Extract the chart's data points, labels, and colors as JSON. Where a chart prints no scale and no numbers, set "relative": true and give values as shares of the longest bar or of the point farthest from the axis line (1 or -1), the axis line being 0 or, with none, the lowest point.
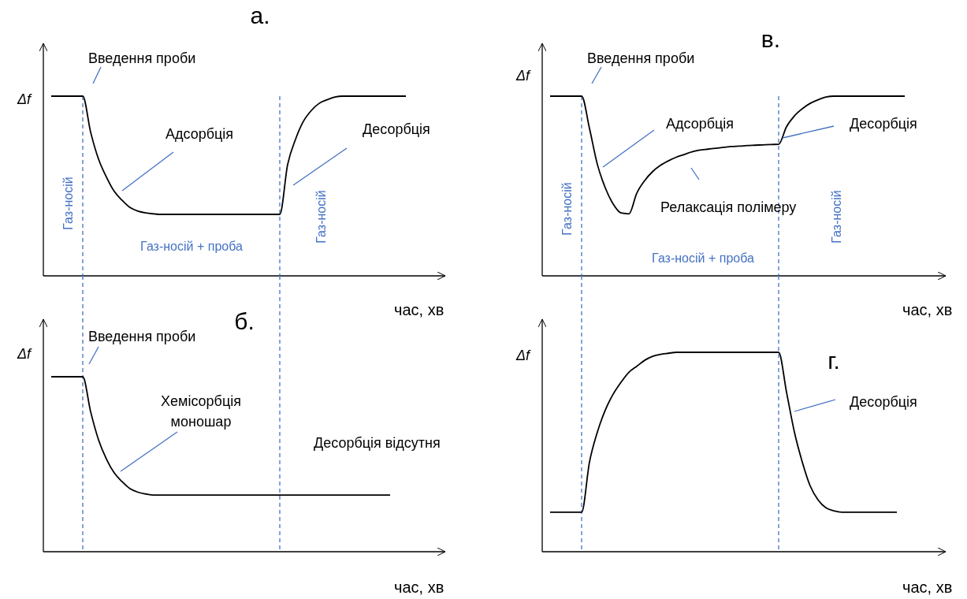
{
  "chart_data": [
    {
      "type": "line",
      "title": "а.",
      "xlabel": "час, хв",
      "ylabel": "Δf",
      "relative": true,
      "marker": "none",
      "line_style": "solid",
      "categories": [
        null,
        null,
        null,
        null,
        null,
        null,
        null,
        null,
        null,
        null,
        null,
        null,
        null,
        null,
        null,
        null,
        null,
        null,
        null,
        null,
        null,
        null,
        null,
        null,
        null,
        null,
        null,
        null,
        null,
        null,
        null,
        null,
        null,
        null,
        null,
        null,
        null,
        null,
        null,
        null,
        null,
        null,
        null,
        null,
        null,
        null,
        null,
        null,
        null,
        null,
        null
      ],
      "series": [
        {
          "color": "#000000",
          "values": [
            null,
            1,
            1,
            1,
            1,
            1,
            0.8,
            0.65,
            0.55,
            0.47,
            0.42,
            0.38,
            0.36,
            0.35,
            0.345,
            0.342,
            0.342,
            0.342,
            0.342,
            0.342,
            0.342,
            0.342,
            0.342,
            0.342,
            0.342,
            0.342,
            0.342,
            0.342,
            0.342,
            0.342,
            0.342,
            0.62,
            0.76,
            0.86,
            0.92,
            0.96,
            0.98,
            0.995,
            1,
            1,
            1,
            1,
            1,
            1,
            1,
            1,
            1,
            null,
            null,
            null,
            null
          ]
        }
      ],
      "annotations": [
        "Введення проби",
        "Адсорбція",
        "Десорбція",
        "Газ-носій",
        "Газ-носій + проба",
        "Газ-носій"
      ]
    },
    {
      "type": "line",
      "title": "б.",
      "xlabel": "час, хв",
      "ylabel": "Δf",
      "relative": true,
      "marker": "none",
      "line_style": "solid",
      "categories": [
        null,
        null,
        null,
        null,
        null,
        null,
        null,
        null,
        null,
        null,
        null,
        null,
        null,
        null,
        null,
        null,
        null,
        null,
        null,
        null,
        null,
        null,
        null,
        null,
        null,
        null,
        null,
        null,
        null,
        null,
        null,
        null,
        null,
        null,
        null,
        null,
        null,
        null,
        null,
        null,
        null,
        null,
        null,
        null,
        null,
        null,
        null,
        null,
        null,
        null,
        null
      ],
      "series": [
        {
          "color": "#000000",
          "values": [
            null,
            1,
            1,
            1,
            1,
            1,
            0.8,
            0.64,
            0.53,
            0.45,
            0.4,
            0.36,
            0.34,
            0.33,
            0.324,
            0.324,
            0.324,
            0.324,
            0.324,
            0.324,
            0.324,
            0.324,
            0.324,
            0.324,
            0.324,
            0.324,
            0.324,
            0.324,
            0.324,
            0.324,
            0.324,
            0.324,
            0.324,
            0.324,
            0.324,
            0.324,
            0.324,
            0.324,
            0.324,
            0.324,
            0.324,
            0.324,
            0.324,
            0.324,
            0.324,
            null,
            null,
            null,
            null,
            null,
            null
          ]
        }
      ],
      "annotations": [
        "Введення проби",
        "Хемісорбція моношар",
        "Десорбція  відсутня"
      ]
    },
    {
      "type": "line",
      "title": "в.",
      "xlabel": "час, хв",
      "ylabel": "Δf",
      "relative": true,
      "marker": "none",
      "line_style": "solid",
      "categories": [
        null,
        null,
        null,
        null,
        null,
        null,
        null,
        null,
        null,
        null,
        null,
        null,
        null,
        null,
        null,
        null,
        null,
        null,
        null,
        null,
        null,
        null,
        null,
        null,
        null,
        null,
        null,
        null,
        null,
        null,
        null,
        null,
        null,
        null,
        null,
        null,
        null,
        null,
        null,
        null,
        null,
        null,
        null,
        null,
        null,
        null,
        null,
        null,
        null,
        null,
        null
      ],
      "series": [
        {
          "color": "#000000",
          "values": [
            null,
            1,
            1,
            1,
            1,
            1,
            0.82,
            0.62,
            0.49,
            0.4,
            0.35,
            0.345,
            0.46,
            0.53,
            0.58,
            0.615,
            0.64,
            0.66,
            0.675,
            0.69,
            0.7,
            0.705,
            0.71,
            0.715,
            0.72,
            0.722,
            0.725,
            0.727,
            0.729,
            0.731,
            0.732,
            0.83,
            0.89,
            0.93,
            0.96,
            0.98,
            0.995,
            1,
            1,
            1,
            1,
            1,
            1,
            1,
            1,
            1,
            1,
            null,
            null,
            null,
            null
          ]
        }
      ],
      "annotations": [
        "Введення проби",
        "Адсорбція",
        "Десорбція",
        "Релаксація полімеру",
        "Газ-носій",
        "Газ-носій + проба",
        "Газ-носій"
      ]
    },
    {
      "type": "line",
      "title": "г.",
      "xlabel": "час, хв",
      "ylabel": "Δf",
      "relative": true,
      "marker": "none",
      "line_style": "solid",
      "categories": [
        null,
        null,
        null,
        null,
        null,
        null,
        null,
        null,
        null,
        null,
        null,
        null,
        null,
        null,
        null,
        null,
        null,
        null,
        null,
        null,
        null,
        null,
        null,
        null,
        null,
        null,
        null,
        null,
        null,
        null,
        null,
        null,
        null,
        null,
        null,
        null,
        null,
        null,
        null,
        null,
        null,
        null,
        null,
        null,
        null,
        null,
        null,
        null,
        null,
        null,
        null
      ],
      "series": [
        {
          "color": "#000000",
          "values": [
            null,
            0.198,
            0.198,
            0.198,
            0.198,
            0.198,
            0.45,
            0.6,
            0.71,
            0.79,
            0.85,
            0.9,
            0.93,
            0.96,
            0.98,
            0.99,
            0.995,
            1,
            1,
            1,
            1,
            1,
            1,
            1,
            1,
            1,
            1,
            1,
            1,
            1,
            1,
            0.8,
            0.6,
            0.45,
            0.33,
            0.26,
            0.22,
            0.205,
            0.198,
            0.198,
            0.198,
            0.198,
            0.198,
            0.198,
            0.198,
            0.198,
            null,
            null,
            null,
            null,
            null
          ]
        }
      ],
      "annotations": [
        "Десорбція"
      ]
    }
  ]
}
